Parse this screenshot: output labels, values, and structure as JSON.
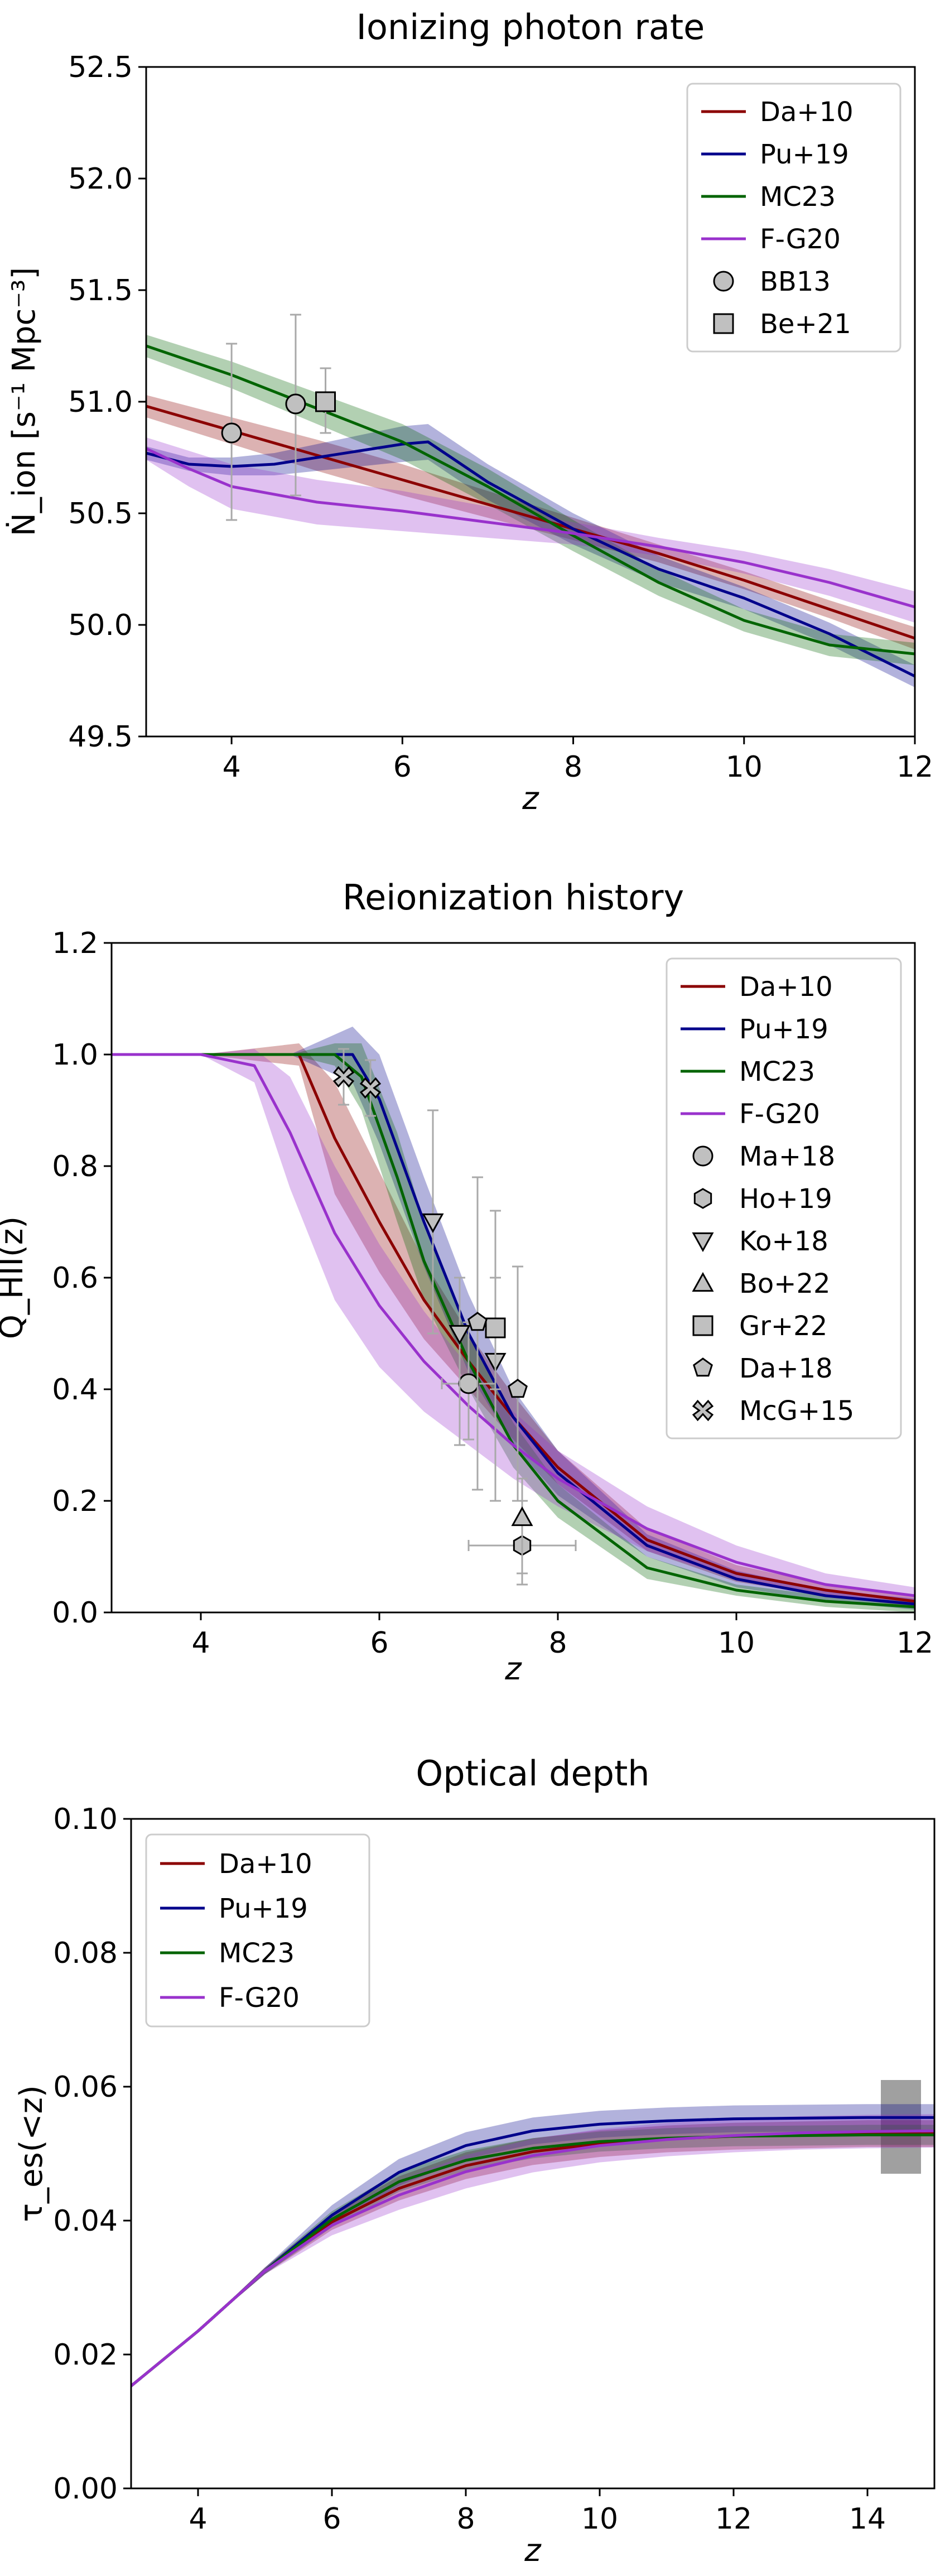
{
  "chart_data": [
    {
      "type": "line",
      "title": "Ionizing photon rate",
      "xlabel": "z",
      "ylabel": "Ṅ_ion [s⁻¹ Mpc⁻³]",
      "xlim": [
        3,
        12
      ],
      "ylim": [
        49.5,
        52.5
      ],
      "xticks": [
        4,
        6,
        8,
        10,
        12
      ],
      "yticks": [
        49.5,
        50.0,
        50.5,
        51.0,
        51.5,
        52.0,
        52.5
      ],
      "xtick_labels": [
        "4",
        "6",
        "8",
        "10",
        "12"
      ],
      "ytick_labels": [
        "49.5",
        "50.0",
        "50.5",
        "51.0",
        "51.5",
        "52.0",
        "52.5"
      ],
      "legend_position": "top-right",
      "series": [
        {
          "name": "Da+10",
          "color": "#8b0000",
          "x": [
            3,
            4,
            5,
            6,
            7,
            8,
            9,
            10,
            11,
            12
          ],
          "y": [
            50.98,
            50.87,
            50.76,
            50.65,
            50.54,
            50.43,
            50.32,
            50.2,
            50.07,
            49.94
          ],
          "band": [
            0.05,
            0.06,
            0.07,
            0.07,
            0.06,
            0.05,
            0.04,
            0.04,
            0.04,
            0.05
          ]
        },
        {
          "name": "Pu+19",
          "color": "#00008b",
          "x": [
            3,
            3.5,
            4,
            4.5,
            5,
            5.5,
            6,
            6.3,
            7,
            8,
            9,
            10,
            11,
            12
          ],
          "y": [
            50.77,
            50.72,
            50.71,
            50.72,
            50.75,
            50.78,
            50.81,
            50.82,
            50.64,
            50.43,
            50.25,
            50.12,
            49.96,
            49.77
          ],
          "band": [
            0.03,
            0.03,
            0.04,
            0.05,
            0.06,
            0.07,
            0.08,
            0.08,
            0.08,
            0.07,
            0.06,
            0.05,
            0.05,
            0.05
          ]
        },
        {
          "name": "MC23",
          "color": "#006400",
          "x": [
            3,
            4,
            5,
            6,
            7,
            8,
            9,
            10,
            11,
            12
          ],
          "y": [
            51.25,
            51.12,
            50.97,
            50.82,
            50.62,
            50.4,
            50.19,
            50.02,
            49.91,
            49.87
          ],
          "band": [
            0.05,
            0.06,
            0.07,
            0.08,
            0.08,
            0.07,
            0.06,
            0.05,
            0.05,
            0.05
          ]
        },
        {
          "name": "F-G20",
          "color": "#9932cc",
          "x": [
            3,
            3.5,
            4,
            5,
            6,
            7,
            8,
            9,
            10,
            11,
            12
          ],
          "y": [
            50.79,
            50.7,
            50.62,
            50.55,
            50.51,
            50.46,
            50.41,
            50.35,
            50.28,
            50.19,
            50.08
          ],
          "band": [
            0.05,
            0.08,
            0.1,
            0.1,
            0.09,
            0.07,
            0.05,
            0.04,
            0.05,
            0.06,
            0.07
          ]
        }
      ],
      "observations": [
        {
          "name": "BB13",
          "marker": "circle",
          "points": [
            {
              "x": 4.0,
              "y": 50.86,
              "ylo": 50.47,
              "yhi": 51.26
            },
            {
              "x": 4.75,
              "y": 50.99,
              "ylo": 50.58,
              "yhi": 51.39
            }
          ]
        },
        {
          "name": "Be+21",
          "marker": "square",
          "points": [
            {
              "x": 5.1,
              "y": 51.0,
              "ylo": 50.86,
              "yhi": 51.15
            }
          ]
        }
      ]
    },
    {
      "type": "line",
      "title": "Reionization history",
      "xlabel": "z",
      "ylabel": "Q_HII(z)",
      "xlim": [
        3,
        12
      ],
      "ylim": [
        0.0,
        1.2
      ],
      "xticks": [
        4,
        6,
        8,
        10,
        12
      ],
      "yticks": [
        0.0,
        0.2,
        0.4,
        0.6,
        0.8,
        1.0,
        1.2
      ],
      "xtick_labels": [
        "4",
        "6",
        "8",
        "10",
        "12"
      ],
      "ytick_labels": [
        "0.0",
        "0.2",
        "0.4",
        "0.6",
        "0.8",
        "1.0",
        "1.2"
      ],
      "legend_position": "top-right",
      "series": [
        {
          "name": "Da+10",
          "color": "#8b0000",
          "x": [
            3,
            4,
            5.1,
            5.5,
            6,
            6.5,
            7,
            7.5,
            8,
            9,
            10,
            11,
            12
          ],
          "y": [
            1.0,
            1.0,
            1.0,
            0.85,
            0.7,
            0.56,
            0.45,
            0.35,
            0.26,
            0.13,
            0.07,
            0.04,
            0.02
          ],
          "band": [
            0,
            0,
            0.02,
            0.1,
            0.09,
            0.07,
            0.05,
            0.04,
            0.03,
            0.02,
            0.015,
            0.01,
            0.01
          ]
        },
        {
          "name": "Pu+19",
          "color": "#00008b",
          "x": [
            3,
            4,
            5,
            5.7,
            6.0,
            6.5,
            7,
            7.5,
            8,
            9,
            10,
            11,
            12
          ],
          "y": [
            1.0,
            1.0,
            1.0,
            1.0,
            0.92,
            0.7,
            0.5,
            0.35,
            0.25,
            0.12,
            0.06,
            0.03,
            0.015
          ],
          "band": [
            0,
            0,
            0,
            0.05,
            0.08,
            0.08,
            0.07,
            0.05,
            0.04,
            0.02,
            0.015,
            0.01,
            0.01
          ]
        },
        {
          "name": "MC23",
          "color": "#006400",
          "x": [
            3,
            4,
            5,
            5.5,
            5.8,
            6.2,
            6.5,
            7,
            7.5,
            8,
            9,
            10,
            11,
            12
          ],
          "y": [
            1.0,
            1.0,
            1.0,
            1.0,
            0.96,
            0.78,
            0.63,
            0.45,
            0.3,
            0.2,
            0.08,
            0.04,
            0.02,
            0.01
          ],
          "band": [
            0,
            0,
            0,
            0.02,
            0.06,
            0.08,
            0.07,
            0.05,
            0.04,
            0.03,
            0.02,
            0.01,
            0.01,
            0.01
          ]
        },
        {
          "name": "F-G20",
          "color": "#9932cc",
          "x": [
            3,
            4,
            4.6,
            5,
            5.5,
            6,
            6.5,
            7,
            7.5,
            8,
            9,
            10,
            11,
            12
          ],
          "y": [
            1.0,
            1.0,
            0.98,
            0.86,
            0.68,
            0.55,
            0.45,
            0.37,
            0.3,
            0.24,
            0.15,
            0.09,
            0.05,
            0.03
          ],
          "band": [
            0,
            0,
            0.03,
            0.1,
            0.12,
            0.11,
            0.09,
            0.07,
            0.06,
            0.05,
            0.04,
            0.03,
            0.02,
            0.015
          ]
        }
      ],
      "observations": [
        {
          "name": "Ma+18",
          "marker": "circle",
          "points": [
            {
              "x": 7.0,
              "y": 0.41,
              "ylo": 0.31,
              "yhi": 0.52,
              "xlo": 6.7,
              "xhi": 7.3
            }
          ]
        },
        {
          "name": "Ho+19",
          "marker": "hexagon",
          "points": [
            {
              "x": 7.6,
              "y": 0.12,
              "ylo": 0.05,
              "yhi": 0.2,
              "xlo": 7.0,
              "xhi": 8.2
            }
          ]
        },
        {
          "name": "Ko+18",
          "marker": "triangle_down",
          "points": [
            {
              "x": 6.6,
              "y": 0.7,
              "ylo": 0.5,
              "yhi": 0.9
            },
            {
              "x": 6.9,
              "y": 0.5,
              "ylo": 0.3,
              "yhi": 0.6
            },
            {
              "x": 7.3,
              "y": 0.45,
              "ylo": 0.2,
              "yhi": 0.6
            }
          ]
        },
        {
          "name": "Bo+22",
          "marker": "triangle_up",
          "points": [
            {
              "x": 7.6,
              "y": 0.17,
              "ylo": 0.07,
              "yhi": 0.24
            }
          ]
        },
        {
          "name": "Gr+22",
          "marker": "square",
          "points": [
            {
              "x": 7.3,
              "y": 0.51,
              "ylo": 0.4,
              "yhi": 0.72
            }
          ]
        },
        {
          "name": "Da+18",
          "marker": "pentagon",
          "points": [
            {
              "x": 7.1,
              "y": 0.52,
              "ylo": 0.22,
              "yhi": 0.78
            },
            {
              "x": 7.55,
              "y": 0.4,
              "ylo": 0.2,
              "yhi": 0.62
            }
          ]
        },
        {
          "name": "McG+15",
          "marker": "x",
          "points": [
            {
              "x": 5.6,
              "y": 0.96,
              "ylo": 0.91,
              "yhi": 1.01
            },
            {
              "x": 5.9,
              "y": 0.94,
              "ylo": 0.89,
              "yhi": 0.99
            }
          ]
        }
      ]
    },
    {
      "type": "line",
      "title": "Optical depth",
      "xlabel": "z",
      "ylabel": "τ_es(<z)",
      "xlim": [
        3,
        15
      ],
      "ylim": [
        0.0,
        0.1
      ],
      "xticks": [
        4,
        6,
        8,
        10,
        12,
        14
      ],
      "yticks": [
        0.0,
        0.02,
        0.04,
        0.06,
        0.08,
        0.1
      ],
      "xtick_labels": [
        "4",
        "6",
        "8",
        "10",
        "12",
        "14"
      ],
      "ytick_labels": [
        "0.00",
        "0.02",
        "0.04",
        "0.06",
        "0.08",
        "0.10"
      ],
      "legend_position": "top-left",
      "series": [
        {
          "name": "Da+10",
          "color": "#8b0000",
          "x": [
            3,
            4,
            5,
            6,
            7,
            8,
            9,
            10,
            11,
            12,
            13,
            14,
            15
          ],
          "y": [
            0.0153,
            0.0235,
            0.0325,
            0.0398,
            0.0448,
            0.0482,
            0.0503,
            0.0515,
            0.0522,
            0.0526,
            0.0528,
            0.053,
            0.053
          ],
          "band": [
            0,
            0,
            0.0005,
            0.0012,
            0.0018,
            0.002,
            0.002,
            0.002,
            0.002,
            0.002,
            0.002,
            0.002,
            0.002
          ]
        },
        {
          "name": "Pu+19",
          "color": "#00008b",
          "x": [
            3,
            4,
            5,
            6,
            7,
            8,
            9,
            10,
            11,
            12,
            13,
            14,
            15
          ],
          "y": [
            0.0153,
            0.0235,
            0.0325,
            0.0408,
            0.0472,
            0.0512,
            0.0534,
            0.0544,
            0.0549,
            0.0552,
            0.0553,
            0.0554,
            0.0554
          ],
          "band": [
            0,
            0,
            0.0005,
            0.0015,
            0.002,
            0.002,
            0.002,
            0.002,
            0.002,
            0.002,
            0.002,
            0.002,
            0.002
          ]
        },
        {
          "name": "MC23",
          "color": "#006400",
          "x": [
            3,
            4,
            5,
            6,
            7,
            8,
            9,
            10,
            11,
            12,
            13,
            14,
            15
          ],
          "y": [
            0.0153,
            0.0235,
            0.0325,
            0.0402,
            0.0458,
            0.049,
            0.0508,
            0.0518,
            0.0523,
            0.0526,
            0.0527,
            0.0528,
            0.0528
          ],
          "band": [
            0,
            0,
            0.0005,
            0.0012,
            0.0015,
            0.0015,
            0.0015,
            0.0015,
            0.0015,
            0.0015,
            0.0015,
            0.0015,
            0.0015
          ]
        },
        {
          "name": "F-G20",
          "color": "#9932cc",
          "x": [
            3,
            4,
            5,
            6,
            7,
            8,
            9,
            10,
            11,
            12,
            13,
            14,
            15
          ],
          "y": [
            0.0153,
            0.0235,
            0.0325,
            0.0393,
            0.0438,
            0.0473,
            0.0497,
            0.0512,
            0.0521,
            0.0527,
            0.0531,
            0.0533,
            0.0534
          ],
          "band": [
            0,
            0,
            0.0005,
            0.0015,
            0.0022,
            0.0025,
            0.0025,
            0.0025,
            0.0025,
            0.0025,
            0.0025,
            0.0025,
            0.0025
          ]
        }
      ],
      "constraint_band": {
        "x_range": [
          14.2,
          14.8
        ],
        "y_range": [
          0.047,
          0.061
        ],
        "color": "#808080"
      }
    }
  ]
}
